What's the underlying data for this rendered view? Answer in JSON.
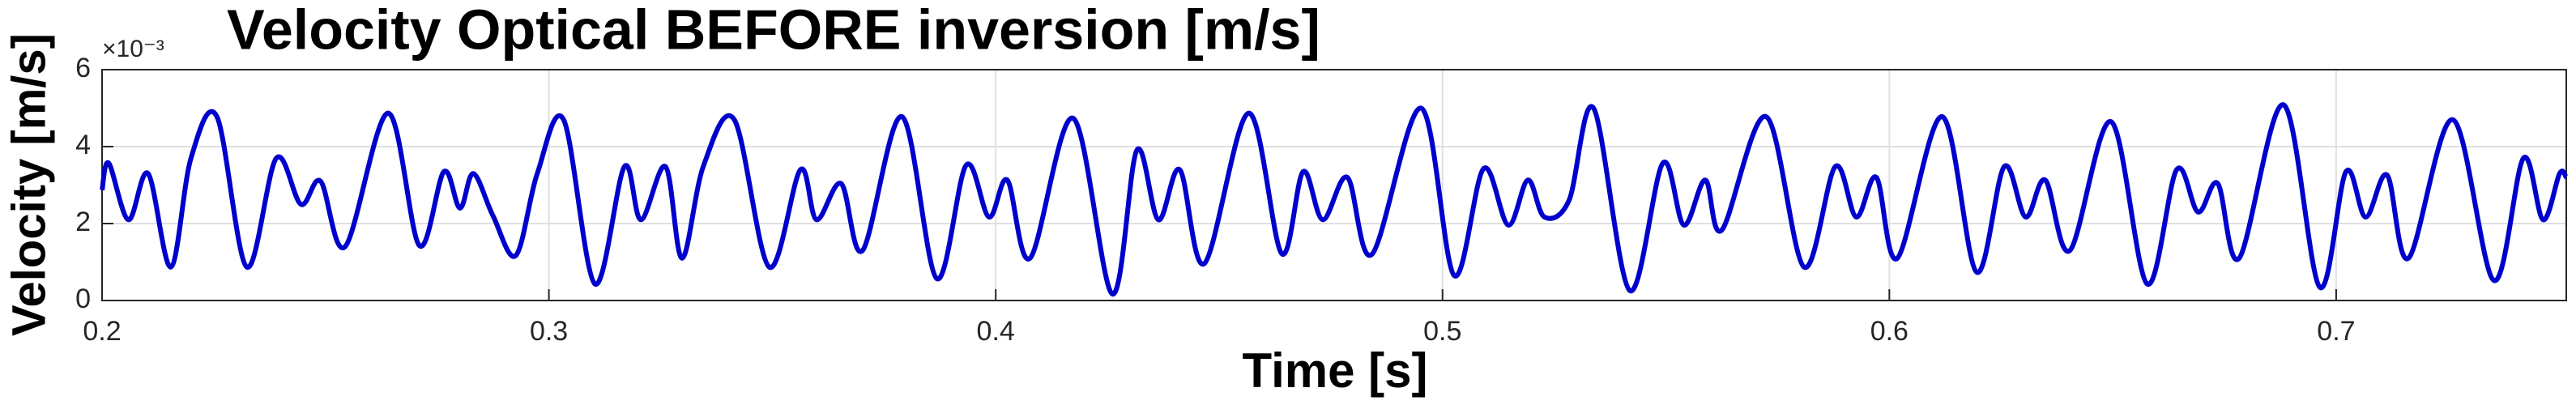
{
  "chart_data": {
    "type": "line",
    "title": "Velocity Optical BEFORE inversion [m/s]",
    "x_label": "Time [s]",
    "y_label": "Velocity [m/s]",
    "y_exponent_label": "×10⁻³",
    "color": "#0000cc",
    "grid": true,
    "xlim": [
      0.2,
      0.7515
    ],
    "ylim": [
      0,
      6
    ],
    "xticks": [
      0.2,
      0.3,
      0.4,
      0.5,
      0.6,
      0.7
    ],
    "yticks": [
      0,
      2,
      4,
      6
    ],
    "x": [
      0.2,
      0.2015,
      0.2059,
      0.2103,
      0.2154,
      0.2199,
      0.2257,
      0.2324,
      0.239,
      0.2445,
      0.2489,
      0.2544,
      0.264,
      0.271,
      0.2765,
      0.2801,
      0.2831,
      0.2875,
      0.2926,
      0.2974,
      0.3033,
      0.3103,
      0.3169,
      0.3206,
      0.3261,
      0.3298,
      0.3346,
      0.3415,
      0.3493,
      0.3563,
      0.3599,
      0.3654,
      0.3702,
      0.379,
      0.3868,
      0.3934,
      0.3985,
      0.4026,
      0.4077,
      0.4173,
      0.4261,
      0.4316,
      0.4364,
      0.4412,
      0.4467,
      0.4566,
      0.464,
      0.4688,
      0.4732,
      0.4787,
      0.4842,
      0.4952,
      0.5026,
      0.5092,
      0.5147,
      0.5191,
      0.5228,
      0.5283,
      0.5338,
      0.5419,
      0.5493,
      0.554,
      0.5588,
      0.5625,
      0.5724,
      0.5809,
      0.5879,
      0.5926,
      0.5971,
      0.6018,
      0.6118,
      0.6195,
      0.6257,
      0.6305,
      0.6349,
      0.6404,
      0.6496,
      0.6577,
      0.6643,
      0.6691,
      0.6735,
      0.6783,
      0.6882,
      0.6963,
      0.7022,
      0.7066,
      0.7114,
      0.7162,
      0.7261,
      0.7353,
      0.7419,
      0.7463,
      0.75,
      0.7515
    ],
    "values": [
      2.87,
      3.57,
      2.1,
      3.3,
      0.87,
      3.7,
      4.78,
      0.87,
      3.7,
      2.5,
      3.1,
      1.4,
      4.87,
      1.43,
      3.35,
      2.4,
      3.3,
      2.2,
      1.17,
      3.3,
      4.7,
      0.43,
      3.48,
      2.1,
      3.48,
      1.1,
      3.5,
      4.7,
      0.87,
      3.4,
      2.1,
      3.04,
      1.3,
      4.78,
      0.57,
      3.52,
      2.17,
      3.13,
      1.1,
      4.74,
      0.17,
      3.91,
      2.1,
      3.4,
      0.96,
      4.87,
      1.22,
      3.35,
      2.1,
      3.2,
      1.2,
      5.0,
      0.65,
      3.43,
      1.96,
      3.13,
      2.17,
      2.6,
      5.0,
      0.26,
      3.57,
      1.96,
      3.13,
      1.83,
      4.78,
      0.87,
      3.48,
      2.17,
      3.2,
      1.1,
      4.78,
      0.74,
      3.48,
      2.17,
      3.13,
      1.3,
      4.65,
      0.43,
      3.4,
      2.3,
      3.04,
      1.1,
      5.09,
      0.35,
      3.35,
      2.17,
      3.26,
      1.1,
      4.7,
      0.52,
      3.7,
      2.1,
      3.3,
      3.2
    ]
  }
}
